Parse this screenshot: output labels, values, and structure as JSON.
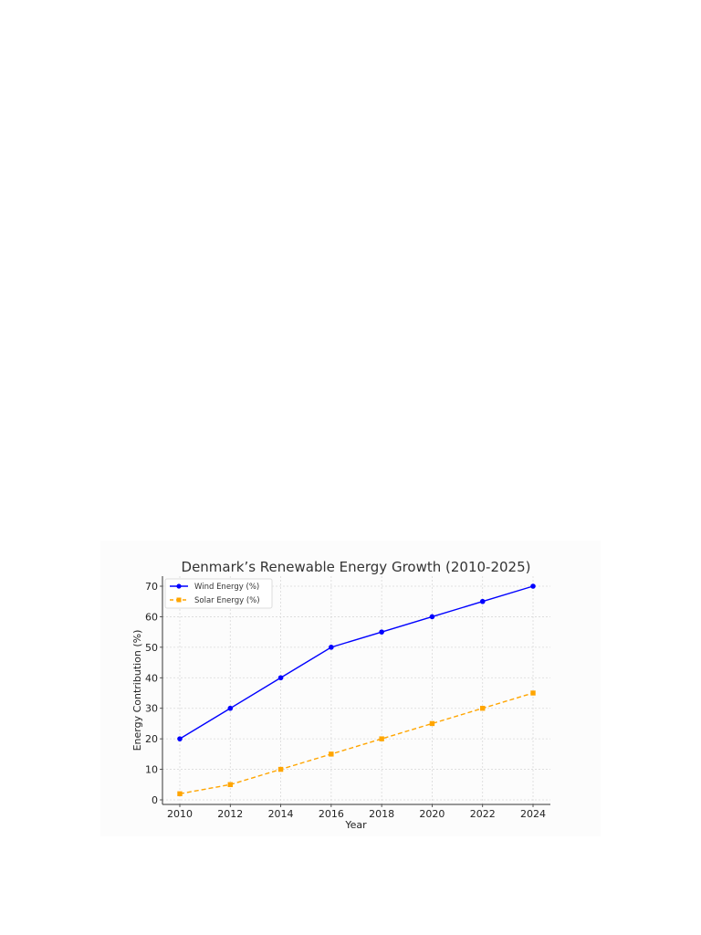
{
  "chart_data": {
    "type": "line",
    "title": "Denmark’s Renewable Energy Growth (2010-2025)",
    "xlabel": "Year",
    "ylabel": "Energy Contribution (%)",
    "x": [
      2010,
      2012,
      2014,
      2016,
      2018,
      2020,
      2022,
      2024
    ],
    "x_ticks": [
      "2010",
      "2012",
      "2014",
      "2016",
      "2018",
      "2020",
      "2022",
      "2024"
    ],
    "y_ticks": [
      "0",
      "10",
      "20",
      "30",
      "40",
      "50",
      "60",
      "70"
    ],
    "ylim": [
      -1,
      73
    ],
    "grid": true,
    "legend_position": "upper left",
    "series": [
      {
        "name": "Wind Energy (%)",
        "color": "#0000ff",
        "marker": "circle",
        "linestyle": "solid",
        "values": [
          20,
          30,
          40,
          50,
          55,
          60,
          65,
          70
        ]
      },
      {
        "name": "Solar Energy (%)",
        "color": "#ffa500",
        "marker": "square",
        "linestyle": "dashed",
        "values": [
          2,
          5,
          10,
          15,
          20,
          25,
          30,
          35
        ]
      }
    ]
  }
}
